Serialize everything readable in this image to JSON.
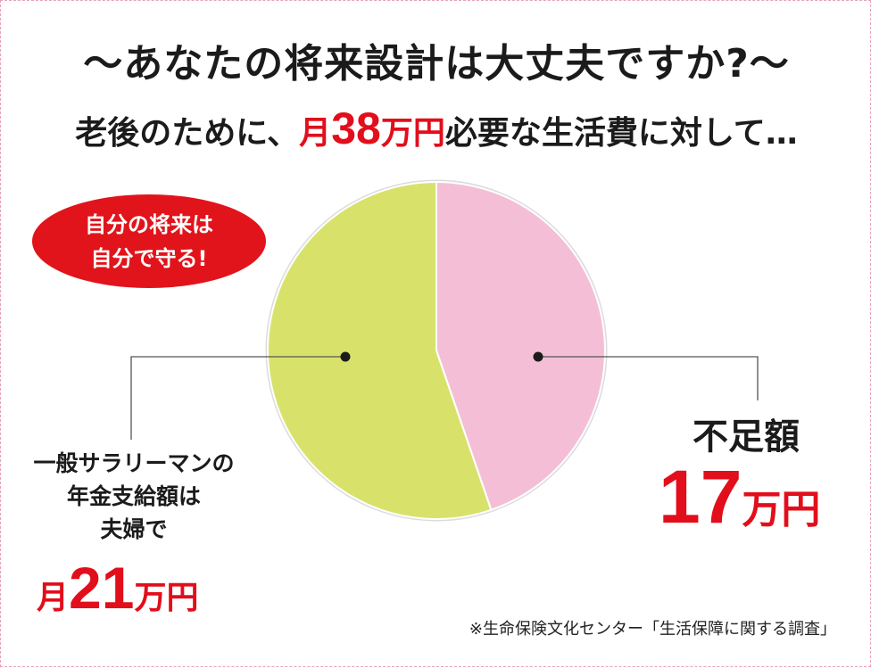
{
  "header": {
    "title": "〜あなたの将来設計は大丈夫ですか?〜",
    "subtitle_pre": "老後のために、",
    "subtitle_month": "月",
    "subtitle_amount": "38",
    "subtitle_unit": "万円",
    "subtitle_post": "必要な生活費に対して…"
  },
  "badge": {
    "line1": "自分の将来は",
    "line2": "自分で守る!"
  },
  "left_label": {
    "line1": "一般サラリーマンの",
    "line2": "年金支給額は",
    "line3": "夫婦で",
    "amount_prefix": "月",
    "amount": "21",
    "unit": "万円"
  },
  "right_label": {
    "title": "不足額",
    "amount": "17",
    "unit": "万円"
  },
  "footnote": "※生命保険文化センター「生活保障に関する調査」",
  "colors": {
    "pension": "#d8e26b",
    "shortfall": "#f4bfd6",
    "accent": "#e20e1b",
    "text": "#1b1b1b"
  },
  "chart_data": {
    "type": "pie",
    "title": "",
    "total": 38,
    "unit": "万円",
    "slices": [
      {
        "label": "一般サラリーマンの年金支給額は夫婦で",
        "value": 21,
        "color": "#d8e26b"
      },
      {
        "label": "不足額",
        "value": 17,
        "color": "#f4bfd6"
      }
    ]
  }
}
